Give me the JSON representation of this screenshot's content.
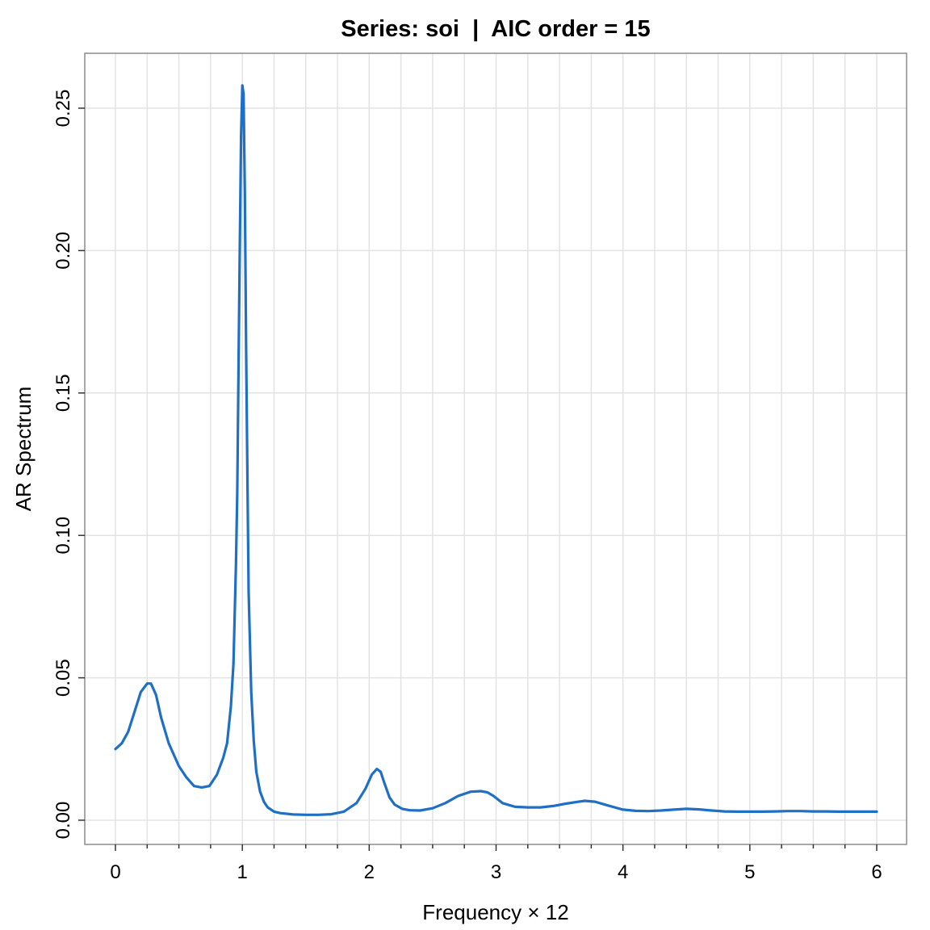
{
  "chart_data": {
    "type": "line",
    "title": "Series: soi  |  AIC order = 15",
    "xlabel": "Frequency × 12",
    "ylabel": "AR Spectrum",
    "xlim": [
      0,
      6
    ],
    "ylim": [
      0,
      0.26
    ],
    "x_ticks": [
      0,
      1,
      2,
      3,
      4,
      5,
      6
    ],
    "x_tick_labels": [
      "0",
      "1",
      "2",
      "3",
      "4",
      "5",
      "6"
    ],
    "x_minor_ticks": [
      0.25,
      0.5,
      0.75,
      1.25,
      1.5,
      1.75,
      2.25,
      2.5,
      2.75,
      3.25,
      3.5,
      3.75,
      4.25,
      4.5,
      4.75,
      5.25,
      5.5,
      5.75
    ],
    "y_ticks": [
      0,
      0.05,
      0.1,
      0.15,
      0.2,
      0.25
    ],
    "y_tick_labels": [
      "0.00",
      "0.05",
      "0.10",
      "0.15",
      "0.20",
      "0.25"
    ],
    "grid": true,
    "colors": {
      "line": "#1f6fc5",
      "grid": "#e3e3e3",
      "frame": "#8c8c8c"
    },
    "series": [
      {
        "x": [
          0,
          0.05,
          0.1,
          0.15,
          0.2,
          0.25,
          0.28,
          0.32,
          0.36,
          0.42,
          0.5,
          0.56,
          0.62,
          0.68,
          0.74,
          0.8,
          0.85,
          0.88,
          0.91,
          0.93,
          0.95,
          0.96,
          0.97,
          0.98,
          0.99,
          1.0,
          1.01,
          1.02,
          1.03,
          1.04,
          1.05,
          1.07,
          1.09,
          1.11,
          1.14,
          1.17,
          1.2,
          1.25,
          1.3,
          1.4,
          1.5,
          1.6,
          1.7,
          1.8,
          1.9,
          1.97,
          2.02,
          2.06,
          2.09,
          2.12,
          2.16,
          2.2,
          2.26,
          2.32,
          2.4,
          2.5,
          2.6,
          2.7,
          2.8,
          2.88,
          2.93,
          2.98,
          3.05,
          3.15,
          3.25,
          3.35,
          3.45,
          3.55,
          3.65,
          3.7,
          3.78,
          3.88,
          4.0,
          4.1,
          4.2,
          4.3,
          4.4,
          4.5,
          4.6,
          4.7,
          4.8,
          4.9,
          5.0,
          5.1,
          5.2,
          5.3,
          5.4,
          5.5,
          5.6,
          5.7,
          5.8,
          5.9,
          6.0
        ],
        "values": [
          0.025,
          0.027,
          0.031,
          0.038,
          0.045,
          0.048,
          0.048,
          0.044,
          0.036,
          0.027,
          0.019,
          0.015,
          0.012,
          0.0115,
          0.012,
          0.016,
          0.022,
          0.027,
          0.04,
          0.055,
          0.09,
          0.115,
          0.16,
          0.2,
          0.24,
          0.258,
          0.255,
          0.22,
          0.165,
          0.12,
          0.08,
          0.045,
          0.028,
          0.017,
          0.01,
          0.0065,
          0.0045,
          0.003,
          0.0025,
          0.002,
          0.0019,
          0.0019,
          0.0021,
          0.003,
          0.006,
          0.011,
          0.016,
          0.018,
          0.017,
          0.013,
          0.008,
          0.0055,
          0.004,
          0.0035,
          0.0034,
          0.0042,
          0.006,
          0.0085,
          0.01,
          0.0102,
          0.0098,
          0.0085,
          0.006,
          0.0047,
          0.0045,
          0.0045,
          0.005,
          0.0058,
          0.0065,
          0.0068,
          0.0065,
          0.0052,
          0.0037,
          0.0033,
          0.0032,
          0.0034,
          0.0037,
          0.004,
          0.0038,
          0.0034,
          0.0031,
          0.003,
          0.003,
          0.003,
          0.0031,
          0.0032,
          0.0032,
          0.0031,
          0.0031,
          0.003,
          0.003,
          0.003,
          0.003
        ]
      }
    ]
  }
}
